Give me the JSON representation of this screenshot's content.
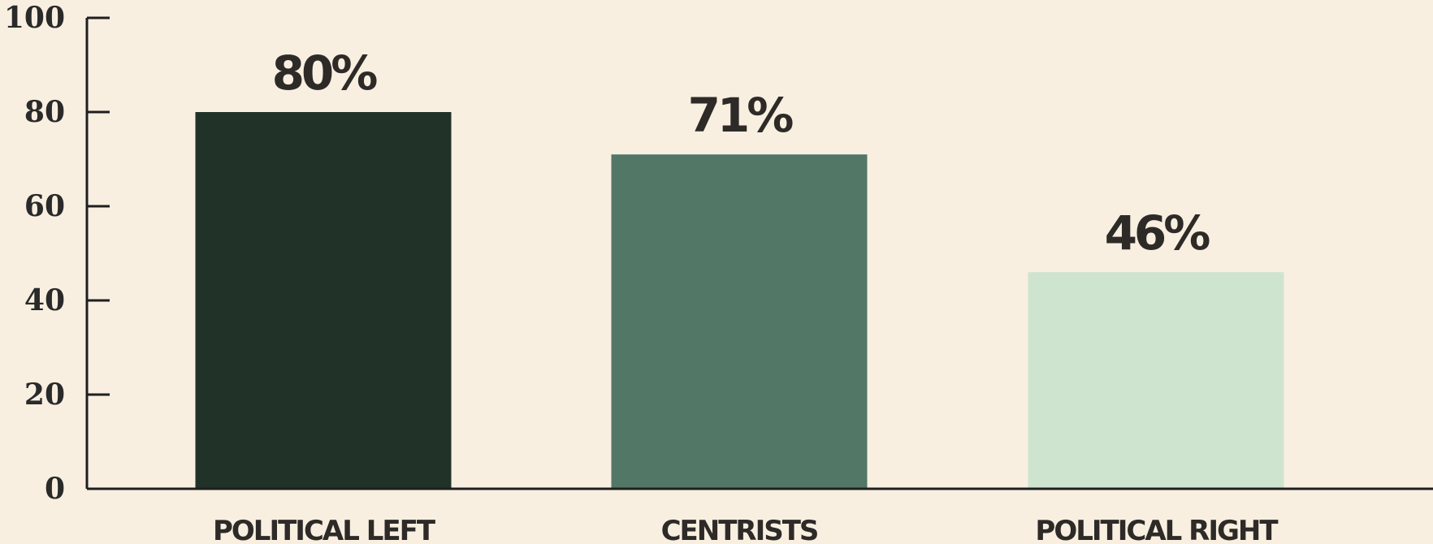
{
  "chart_data": {
    "type": "bar",
    "categories": [
      "POLITICAL LEFT",
      "CENTRISTS",
      "POLITICAL RIGHT"
    ],
    "values": [
      80,
      71,
      46
    ],
    "data_labels": [
      "80%",
      "71%",
      "46%"
    ],
    "y_ticks": [
      "0",
      "20",
      "40",
      "60",
      "80",
      "100"
    ],
    "ylim": [
      0,
      100
    ],
    "title": "",
    "xlabel": "",
    "ylabel": "",
    "grid": false,
    "colors": [
      "#213328",
      "#527766",
      "#cfe4cf"
    ],
    "axis_color": "#1f1f1f",
    "background": "#f8efe1"
  }
}
